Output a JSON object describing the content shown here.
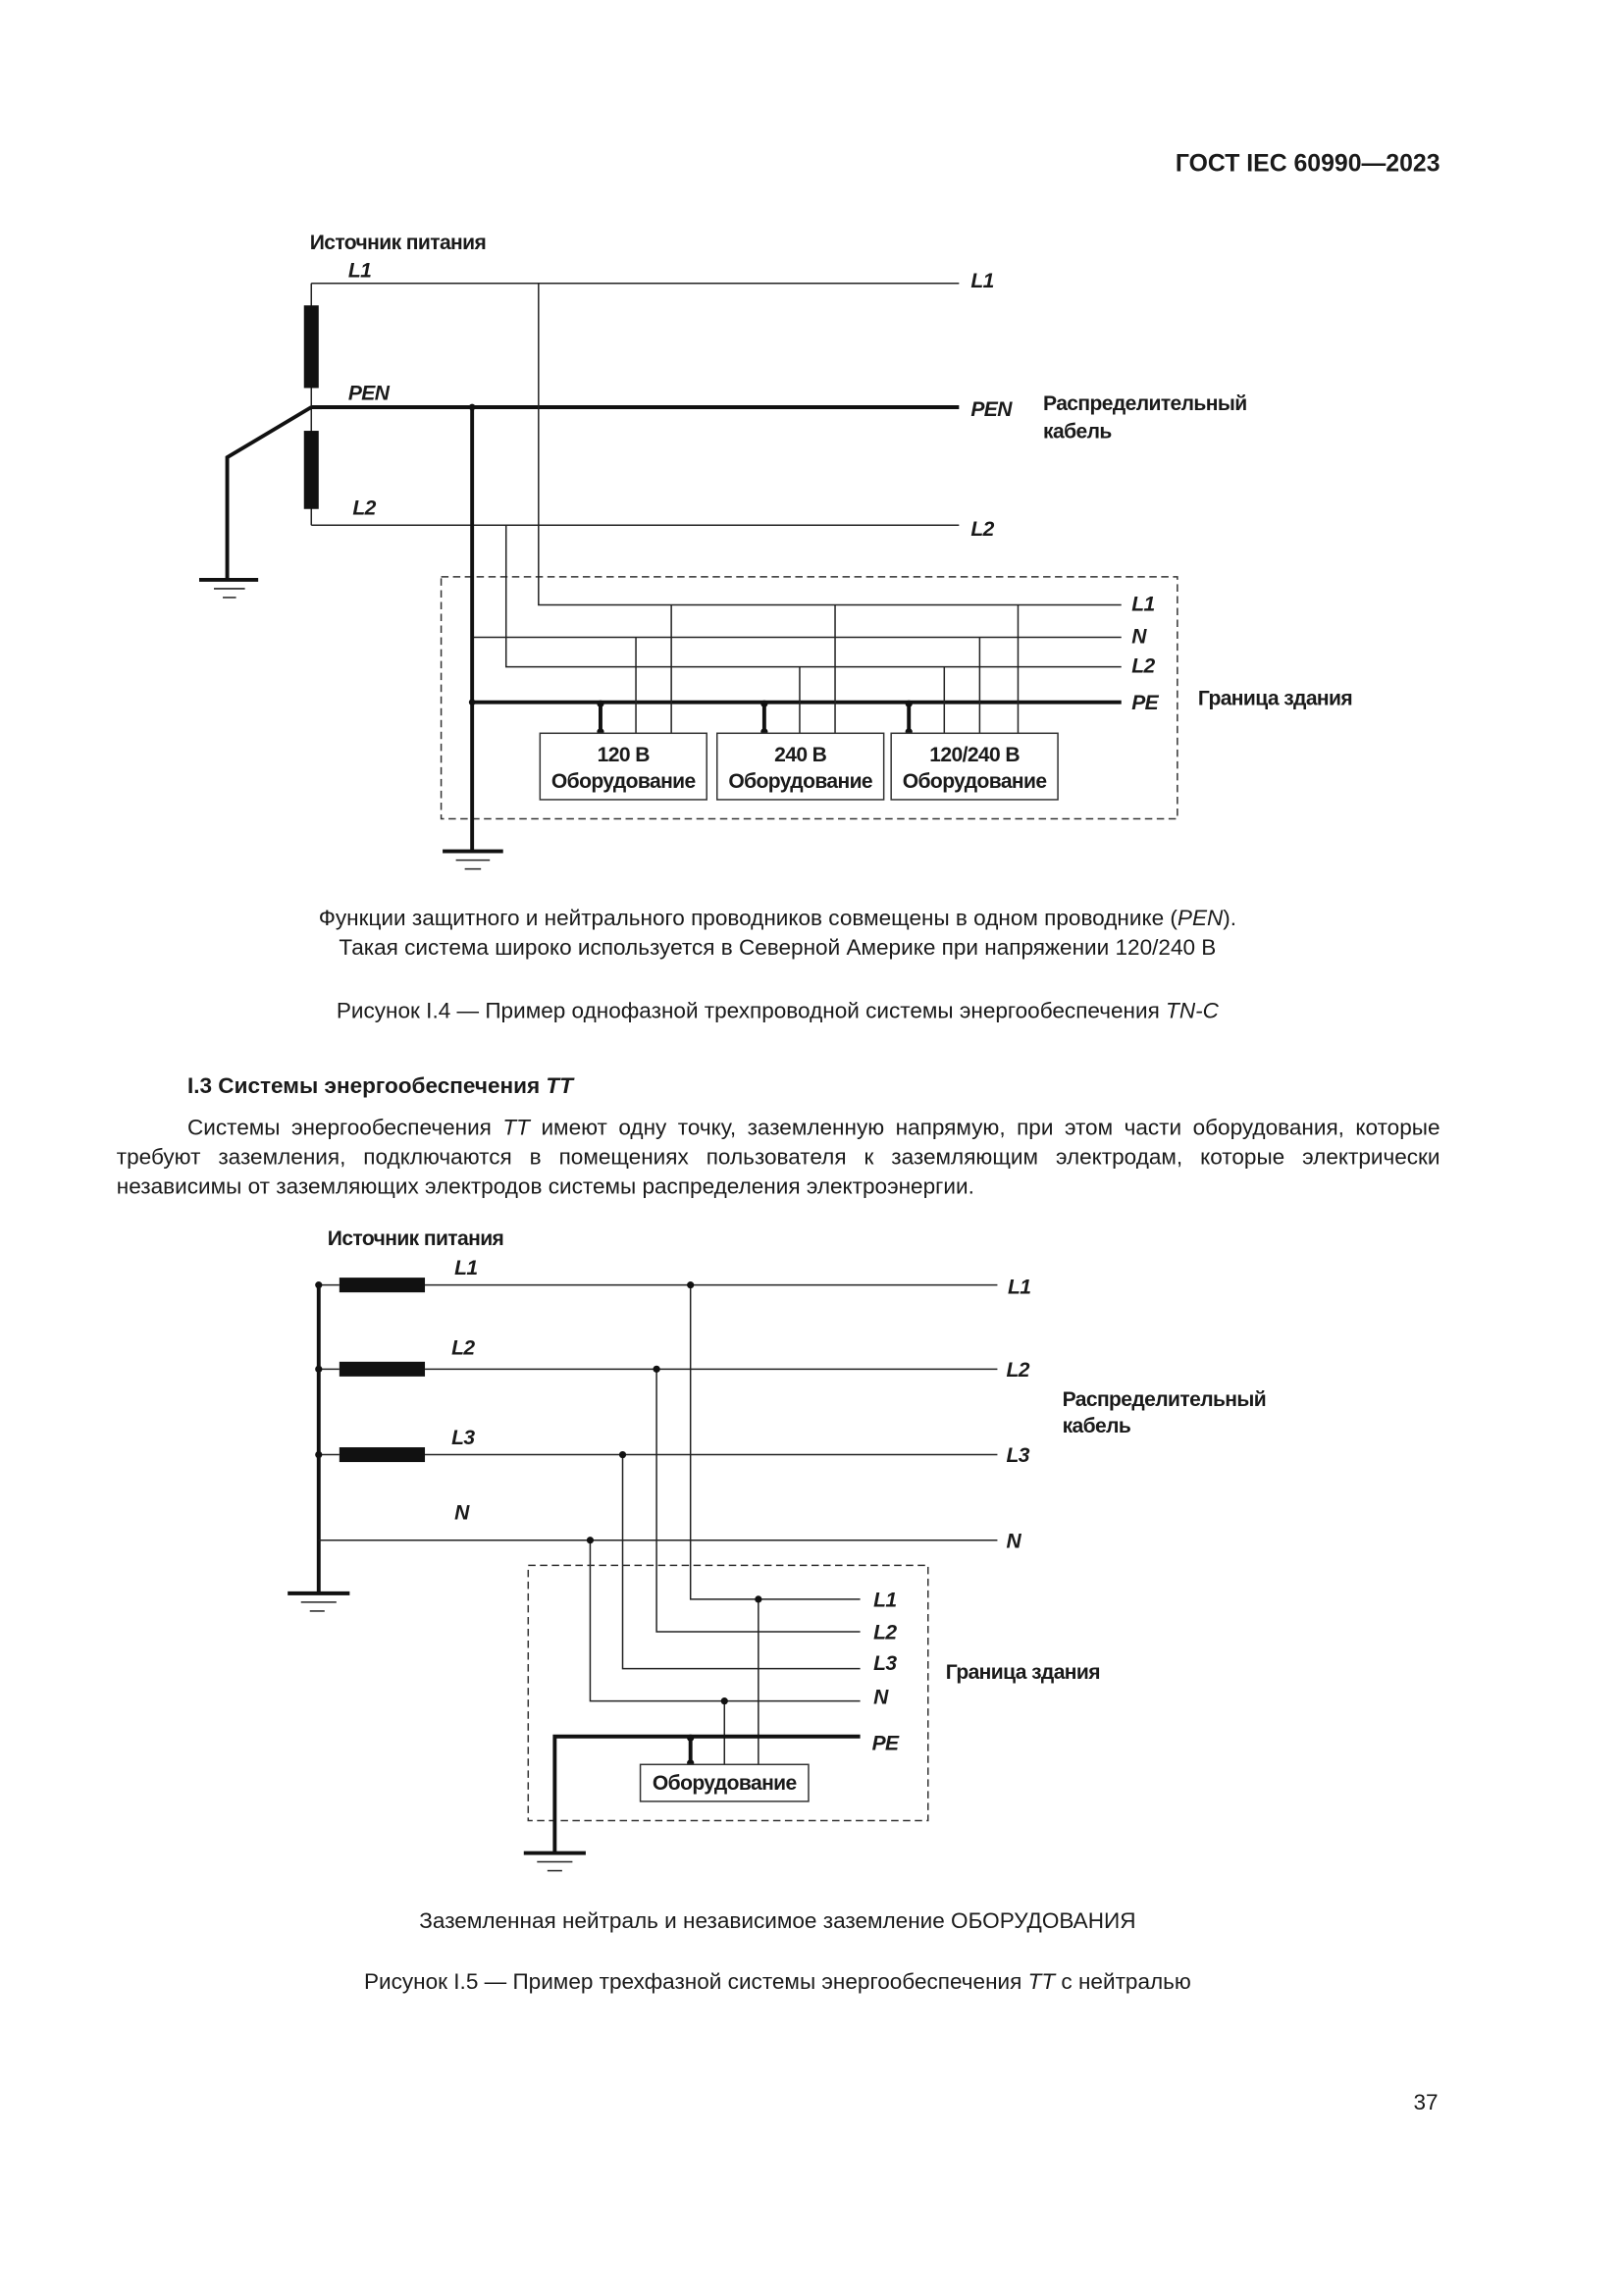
{
  "header": {
    "doc_code": "ГОСТ IEC 60990—2023"
  },
  "figure_i4": {
    "source_label": "Источник питания",
    "conductors_source": [
      "L1",
      "PEN",
      "L2"
    ],
    "conductors_cable": [
      "L1",
      "PEN",
      "L2"
    ],
    "cable_label": [
      "Распределительный",
      "кабель"
    ],
    "building_conductors": [
      "L1",
      "N",
      "L2",
      "PE"
    ],
    "building_label": "Граница здания",
    "equipment": [
      {
        "voltage": "120 В",
        "name": "Оборудование"
      },
      {
        "voltage": "240 В",
        "name": "Оборудование"
      },
      {
        "voltage": "120/240 В",
        "name": "Оборудование"
      }
    ],
    "note_line1_a": "Функции защитного и нейтрального проводников совмещены в одном проводнике (",
    "note_line1_b": "PEN",
    "note_line1_c": ").",
    "note_line2": "Такая система широко используется в Северной Америке при напряжении 120/240 В",
    "caption_a": "Рисунок I.4 — Пример однофазной трехпроводной системы энергообеспечения ",
    "caption_b": "TN-C"
  },
  "section": {
    "heading_a": "I.3 Системы энергообеспечения ",
    "heading_b": "TT",
    "para_a": "Системы энергообеспечения ",
    "para_b": "TT",
    "para_c": " имеют одну точку, заземленную напрямую, при этом части оборудования, которые требуют заземления, подключаются в помещениях пользователя к заземляющим электродам, которые электрически независимы от заземляющих электродов системы распределения электроэнергии."
  },
  "figure_i5": {
    "source_label": "Источник питания",
    "conductors_source": [
      "L1",
      "L2",
      "L3",
      "N"
    ],
    "conductors_cable": [
      "L1",
      "L2",
      "L3",
      "N"
    ],
    "cable_label": [
      "Распределительный",
      "кабель"
    ],
    "building_conductors": [
      "L1",
      "L2",
      "L3",
      "N",
      "PE"
    ],
    "building_label": "Граница здания",
    "equipment_name": "Оборудование",
    "note": "Заземленная нейтраль и независимое заземление ОБОРУДОВАНИЯ",
    "caption_a": "Рисунок I.5 — Пример трехфазной системы энергообеспечения ",
    "caption_b": "TT",
    "caption_c": " с нейтралью"
  },
  "page_number": "37"
}
